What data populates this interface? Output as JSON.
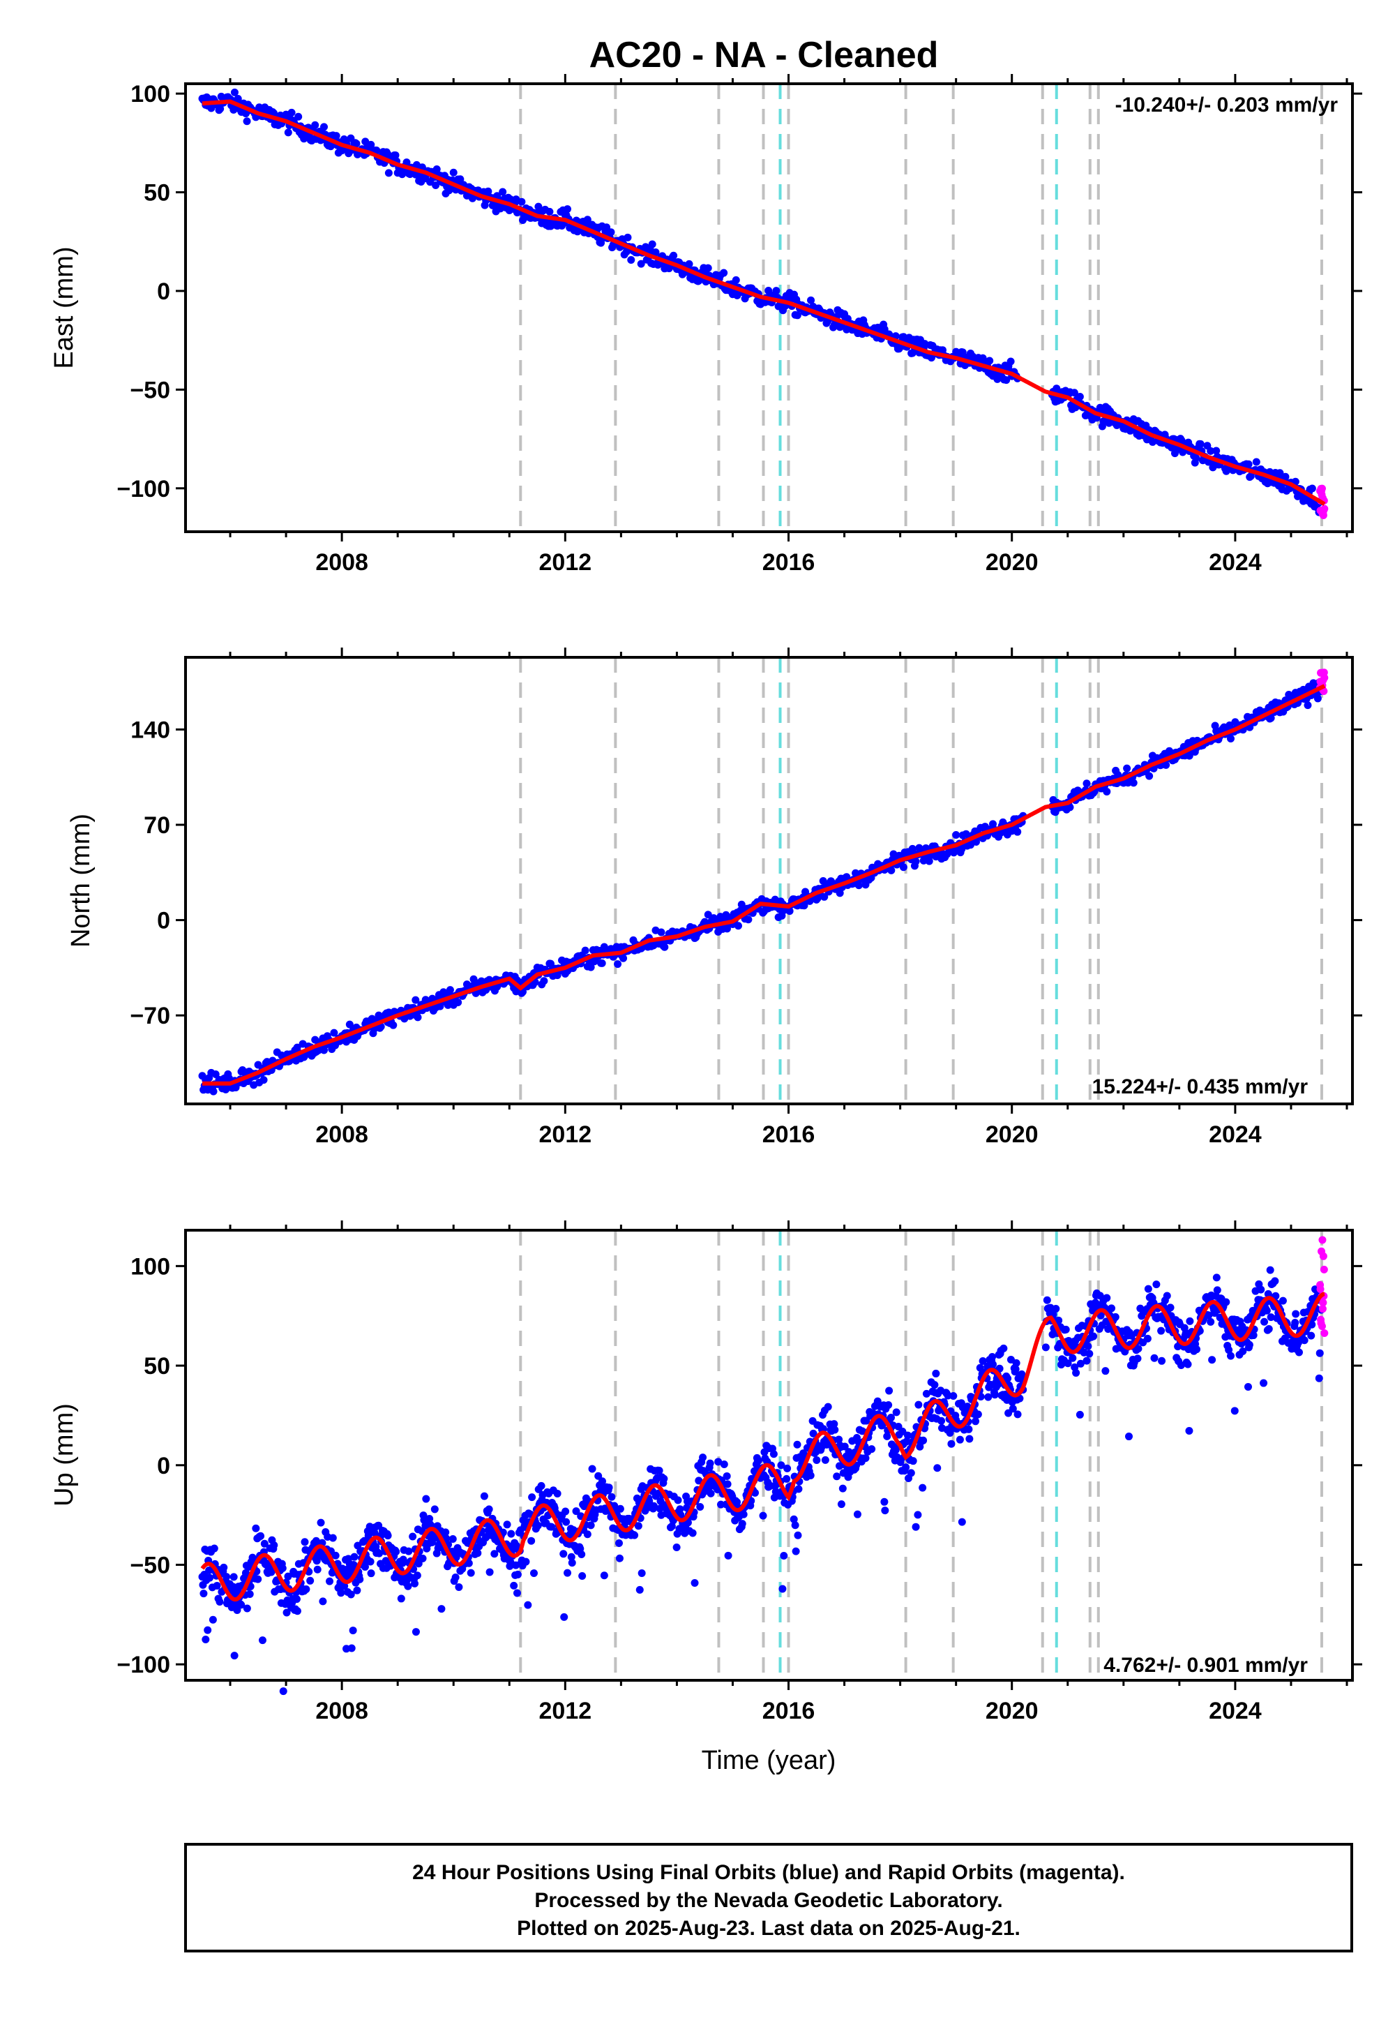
{
  "chart_data": {
    "type": "scatter",
    "title": "AC20  - NA - Cleaned",
    "xlabel": "Time (year)",
    "xlim": [
      2005.2,
      2026.1
    ],
    "xticks": [
      2008,
      2012,
      2016,
      2020,
      2024
    ],
    "xtick_labels": [
      "2008",
      "2012",
      "2016",
      "2020",
      "2024"
    ],
    "series_colors": {
      "final": "#0000ff",
      "rapid": "#ff00ff",
      "model": "#ff0000"
    },
    "event_lines": {
      "gray": [
        2011.2,
        2012.9,
        2014.75,
        2015.55,
        2016.0,
        2018.1,
        2018.95,
        2020.55,
        2021.4,
        2021.55,
        2025.55
      ],
      "cyan": [
        2015.85,
        2020.8
      ],
      "gray_color": "#c0c0c0",
      "cyan_color": "#66dddd"
    },
    "panels": [
      {
        "name": "east",
        "ylabel": "East (mm)",
        "ylim": [
          -122,
          105
        ],
        "yticks": [
          100,
          50,
          0,
          -50,
          -100
        ],
        "ytick_labels": [
          "100",
          "50",
          "0",
          "−50",
          "−100"
        ],
        "rate": "-10.240+/- 0.203 mm/yr",
        "rate_position": "top-right",
        "model_points": [
          [
            2005.5,
            95
          ],
          [
            2006.0,
            96
          ],
          [
            2006.5,
            90
          ],
          [
            2007.0,
            86
          ],
          [
            2007.5,
            80
          ],
          [
            2008.0,
            74
          ],
          [
            2008.5,
            70
          ],
          [
            2009.0,
            64
          ],
          [
            2009.5,
            60
          ],
          [
            2010.0,
            54
          ],
          [
            2010.5,
            48
          ],
          [
            2011.0,
            44
          ],
          [
            2011.5,
            38
          ],
          [
            2012.0,
            36
          ],
          [
            2012.5,
            30
          ],
          [
            2013.0,
            24
          ],
          [
            2013.5,
            18
          ],
          [
            2014.0,
            13
          ],
          [
            2014.5,
            7
          ],
          [
            2015.0,
            2
          ],
          [
            2015.5,
            -3
          ],
          [
            2016.0,
            -6
          ],
          [
            2016.5,
            -11
          ],
          [
            2017.0,
            -16
          ],
          [
            2017.5,
            -21
          ],
          [
            2018.0,
            -26
          ],
          [
            2018.5,
            -31
          ],
          [
            2019.0,
            -34
          ],
          [
            2019.5,
            -38
          ],
          [
            2020.0,
            -42
          ],
          [
            2020.6,
            -51
          ],
          [
            2021.0,
            -54
          ],
          [
            2021.5,
            -62
          ],
          [
            2022.0,
            -66
          ],
          [
            2022.5,
            -73
          ],
          [
            2023.0,
            -78
          ],
          [
            2023.5,
            -84
          ],
          [
            2024.0,
            -89
          ],
          [
            2024.5,
            -93
          ],
          [
            2025.0,
            -98
          ],
          [
            2025.6,
            -108
          ]
        ],
        "scatter_spread": 3.5,
        "rapid_range": [
          -116,
          -100
        ]
      },
      {
        "name": "north",
        "ylabel": "North (mm)",
        "ylim": [
          -135,
          193
        ],
        "yticks": [
          140,
          70,
          0,
          -70
        ],
        "ytick_labels": [
          "140",
          "70",
          "0",
          "−70"
        ],
        "rate": "15.224+/- 0.435 mm/yr",
        "rate_position": "bottom-right",
        "model_points": [
          [
            2005.5,
            -120
          ],
          [
            2006.0,
            -120
          ],
          [
            2006.5,
            -112
          ],
          [
            2007.0,
            -102
          ],
          [
            2007.5,
            -93
          ],
          [
            2008.0,
            -86
          ],
          [
            2008.5,
            -78
          ],
          [
            2009.0,
            -70
          ],
          [
            2009.5,
            -63
          ],
          [
            2010.0,
            -56
          ],
          [
            2010.5,
            -49
          ],
          [
            2011.0,
            -43
          ],
          [
            2011.2,
            -50
          ],
          [
            2011.5,
            -40
          ],
          [
            2012.0,
            -35
          ],
          [
            2012.5,
            -26
          ],
          [
            2013.0,
            -24
          ],
          [
            2013.5,
            -15
          ],
          [
            2014.0,
            -12
          ],
          [
            2014.5,
            -5
          ],
          [
            2015.0,
            -1
          ],
          [
            2015.5,
            12
          ],
          [
            2016.0,
            10
          ],
          [
            2016.5,
            20
          ],
          [
            2017.0,
            27
          ],
          [
            2017.5,
            35
          ],
          [
            2018.0,
            44
          ],
          [
            2018.5,
            50
          ],
          [
            2019.0,
            55
          ],
          [
            2019.5,
            64
          ],
          [
            2020.0,
            70
          ],
          [
            2020.6,
            83
          ],
          [
            2021.0,
            86
          ],
          [
            2021.5,
            98
          ],
          [
            2022.0,
            104
          ],
          [
            2022.5,
            114
          ],
          [
            2023.0,
            122
          ],
          [
            2023.5,
            132
          ],
          [
            2024.0,
            140
          ],
          [
            2024.5,
            150
          ],
          [
            2025.0,
            160
          ],
          [
            2025.6,
            172
          ]
        ],
        "scatter_spread": 4.5,
        "rapid_range": [
          168,
          182
        ]
      },
      {
        "name": "up",
        "ylabel": "Up (mm)",
        "ylim": [
          -108,
          118
        ],
        "yticks": [
          100,
          50,
          0,
          -50,
          -100
        ],
        "ytick_labels": [
          "100",
          "50",
          "0",
          "−50",
          "−100"
        ],
        "rate": "4.762+/- 0.901 mm/yr",
        "rate_position": "bottom-right",
        "model_trend": [
          [
            2005.5,
            -60
          ],
          [
            2011.2,
            -35
          ],
          [
            2011.25,
            -32
          ],
          [
            2016.0,
            -8
          ],
          [
            2016.1,
            2
          ],
          [
            2018.0,
            18
          ],
          [
            2018.1,
            14
          ],
          [
            2020.2,
            47
          ],
          [
            2020.7,
            66
          ],
          [
            2025.6,
            76
          ]
        ],
        "seasonal_amplitude": 10,
        "scatter_spread": 9,
        "rapid_range": [
          65,
          115
        ]
      }
    ]
  },
  "footer": {
    "line1": "24 Hour Positions Using Final Orbits (blue) and Rapid Orbits (magenta).",
    "line2": "Processed by the Nevada Geodetic Laboratory.",
    "line3": "Plotted on 2025-Aug-23. Last data on 2025-Aug-21."
  }
}
